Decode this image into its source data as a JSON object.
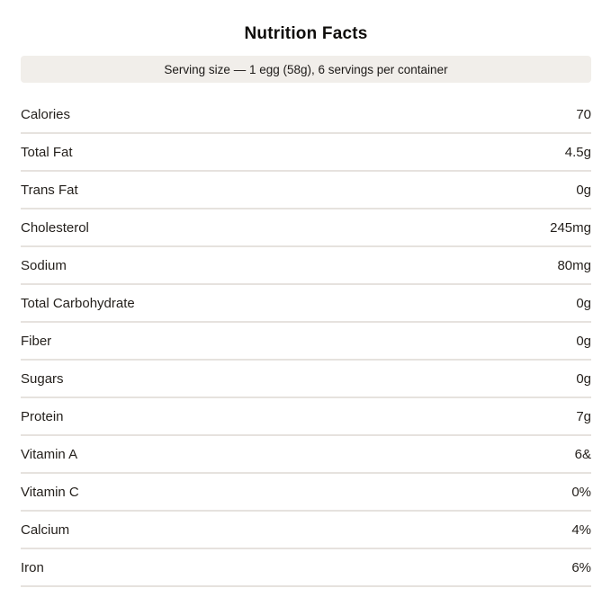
{
  "title": "Nutrition Facts",
  "serving_info": "Serving size — 1 egg (58g), 6 servings per container",
  "rows": [
    {
      "label": "Calories",
      "value": "70"
    },
    {
      "label": "Total Fat",
      "value": "4.5g"
    },
    {
      "label": "Trans Fat",
      "value": "0g"
    },
    {
      "label": "Cholesterol",
      "value": "245mg"
    },
    {
      "label": "Sodium",
      "value": "80mg"
    },
    {
      "label": "Total Carbohydrate",
      "value": "0g"
    },
    {
      "label": "Fiber",
      "value": "0g"
    },
    {
      "label": "Sugars",
      "value": "0g"
    },
    {
      "label": "Protein",
      "value": "7g"
    },
    {
      "label": "Vitamin A",
      "value": "6&"
    },
    {
      "label": "Vitamin C",
      "value": "0%"
    },
    {
      "label": "Calcium",
      "value": "4%"
    },
    {
      "label": "Iron",
      "value": "6%"
    }
  ],
  "colors": {
    "page_background": "#ffffff",
    "banner_background": "#f1eeea",
    "divider": "#e6e2de",
    "text": "#1c1917"
  }
}
